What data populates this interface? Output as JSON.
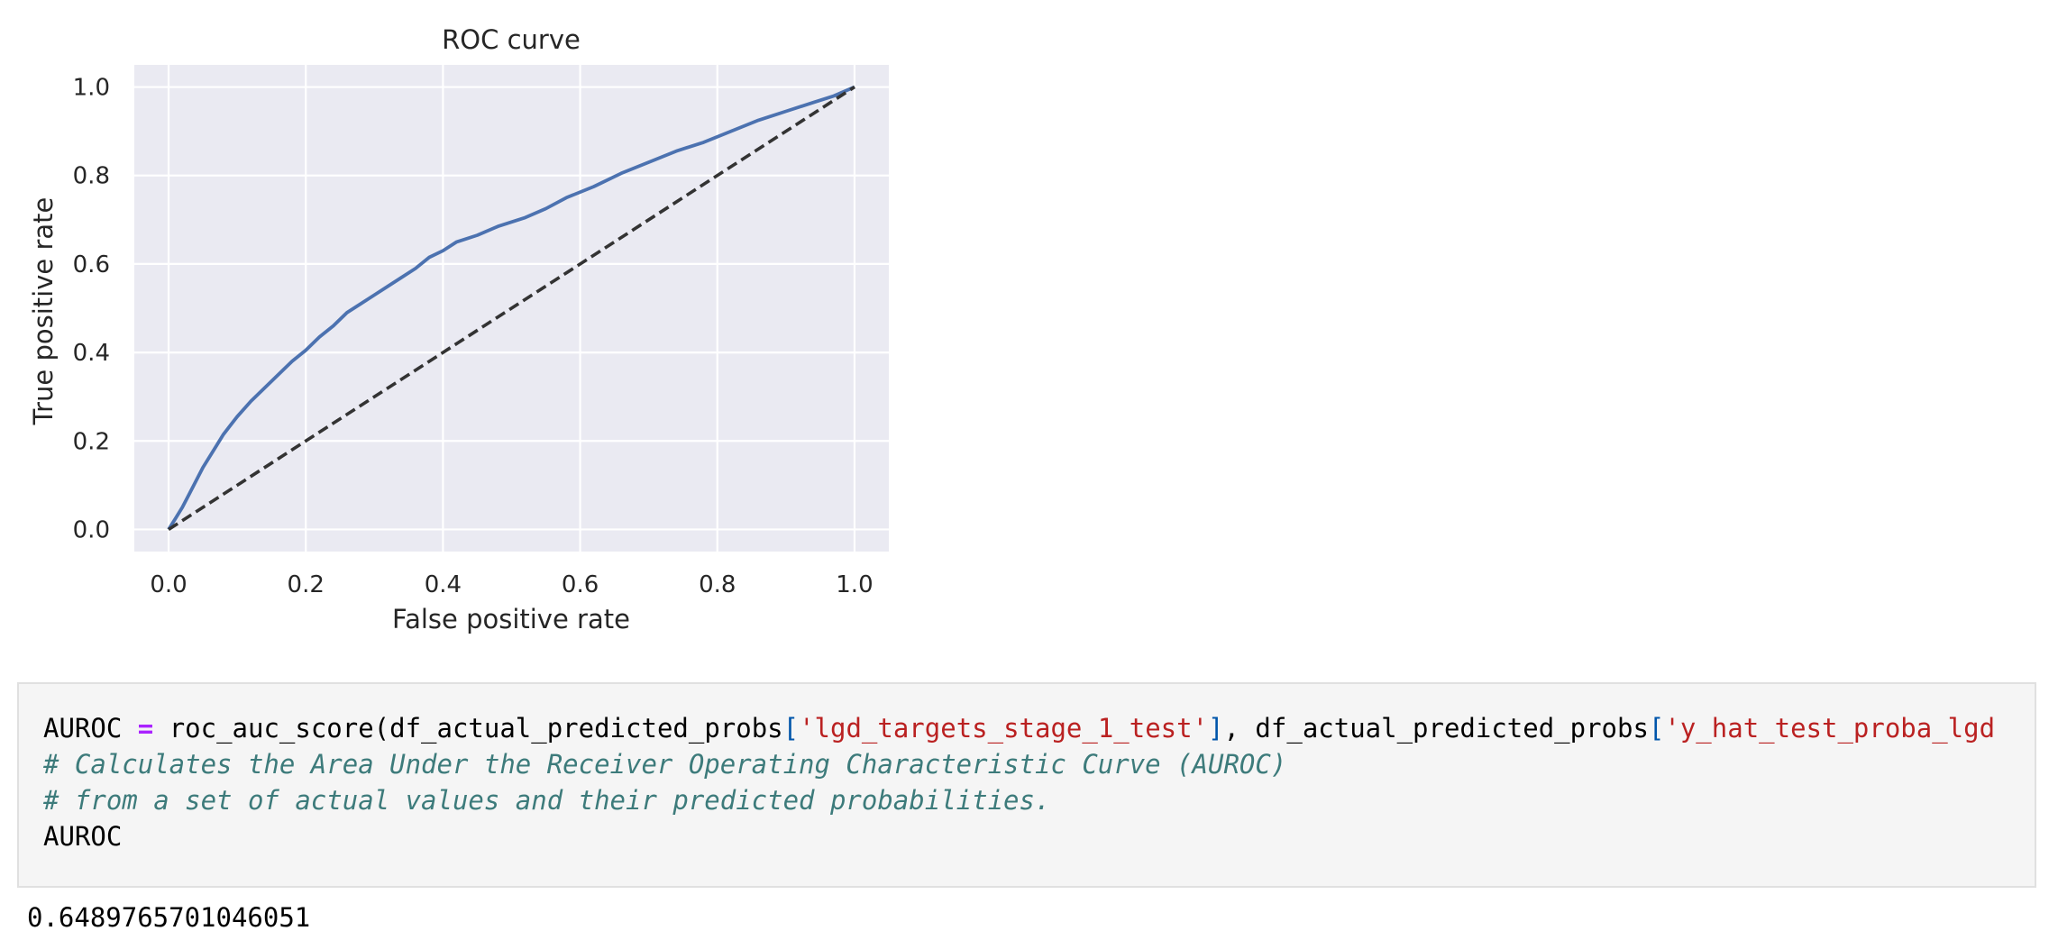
{
  "chart_data": {
    "type": "line",
    "title": "ROC curve",
    "xlabel": "False positive rate",
    "ylabel": "True positive rate",
    "xlim": [
      -0.05,
      1.05
    ],
    "ylim": [
      -0.05,
      1.05
    ],
    "xticks": [
      "0.0",
      "0.2",
      "0.4",
      "0.6",
      "0.8",
      "1.0"
    ],
    "yticks": [
      "0.0",
      "0.2",
      "0.4",
      "0.6",
      "0.8",
      "1.0"
    ],
    "grid": true,
    "style": "seaborn-darkgrid",
    "colors": {
      "background": "#eaeaf2",
      "grid": "#ffffff",
      "roc": "#4c72b0",
      "diagonal": "#333333"
    },
    "series": [
      {
        "type": "line",
        "x": [
          0.0,
          0.01,
          0.02,
          0.03,
          0.04,
          0.05,
          0.06,
          0.07,
          0.08,
          0.09,
          0.1,
          0.12,
          0.14,
          0.16,
          0.18,
          0.2,
          0.22,
          0.24,
          0.26,
          0.28,
          0.3,
          0.32,
          0.34,
          0.36,
          0.38,
          0.4,
          0.42,
          0.45,
          0.48,
          0.52,
          0.55,
          0.58,
          0.62,
          0.66,
          0.7,
          0.74,
          0.78,
          0.82,
          0.86,
          0.9,
          0.94,
          0.97,
          1.0
        ],
        "y": [
          0.0,
          0.025,
          0.05,
          0.08,
          0.11,
          0.14,
          0.165,
          0.19,
          0.215,
          0.235,
          0.255,
          0.29,
          0.32,
          0.35,
          0.38,
          0.405,
          0.435,
          0.46,
          0.49,
          0.51,
          0.53,
          0.55,
          0.57,
          0.59,
          0.615,
          0.63,
          0.65,
          0.665,
          0.685,
          0.705,
          0.725,
          0.75,
          0.775,
          0.805,
          0.83,
          0.855,
          0.875,
          0.9,
          0.925,
          0.945,
          0.965,
          0.98,
          1.0
        ]
      },
      {
        "type": "dashed",
        "x": [
          0.0,
          1.0
        ],
        "y": [
          0.0,
          1.0
        ]
      }
    ]
  },
  "code_cell": {
    "lines": [
      [
        {
          "t": "AUROC ",
          "c": ""
        },
        {
          "t": "=",
          "c": "op"
        },
        {
          "t": " roc_auc_score(df_actual_predicted_probs",
          "c": ""
        },
        {
          "t": "[",
          "c": "bracket"
        },
        {
          "t": "'lgd_targets_stage_1_test'",
          "c": "str"
        },
        {
          "t": "]",
          "c": "bracket"
        },
        {
          "t": ", df_actual_predicted_probs",
          "c": ""
        },
        {
          "t": "[",
          "c": "bracket"
        },
        {
          "t": "'y_hat_test_proba_lgd",
          "c": "str"
        }
      ],
      [
        {
          "t": "# Calculates the Area Under the Receiver Operating Characteristic Curve (AUROC)",
          "c": "comment"
        }
      ],
      [
        {
          "t": "# from a set of actual values and their predicted probabilities.",
          "c": "comment"
        }
      ],
      [
        {
          "t": "AUROC",
          "c": ""
        }
      ]
    ]
  },
  "output": {
    "value": "0.6489765701046051"
  }
}
